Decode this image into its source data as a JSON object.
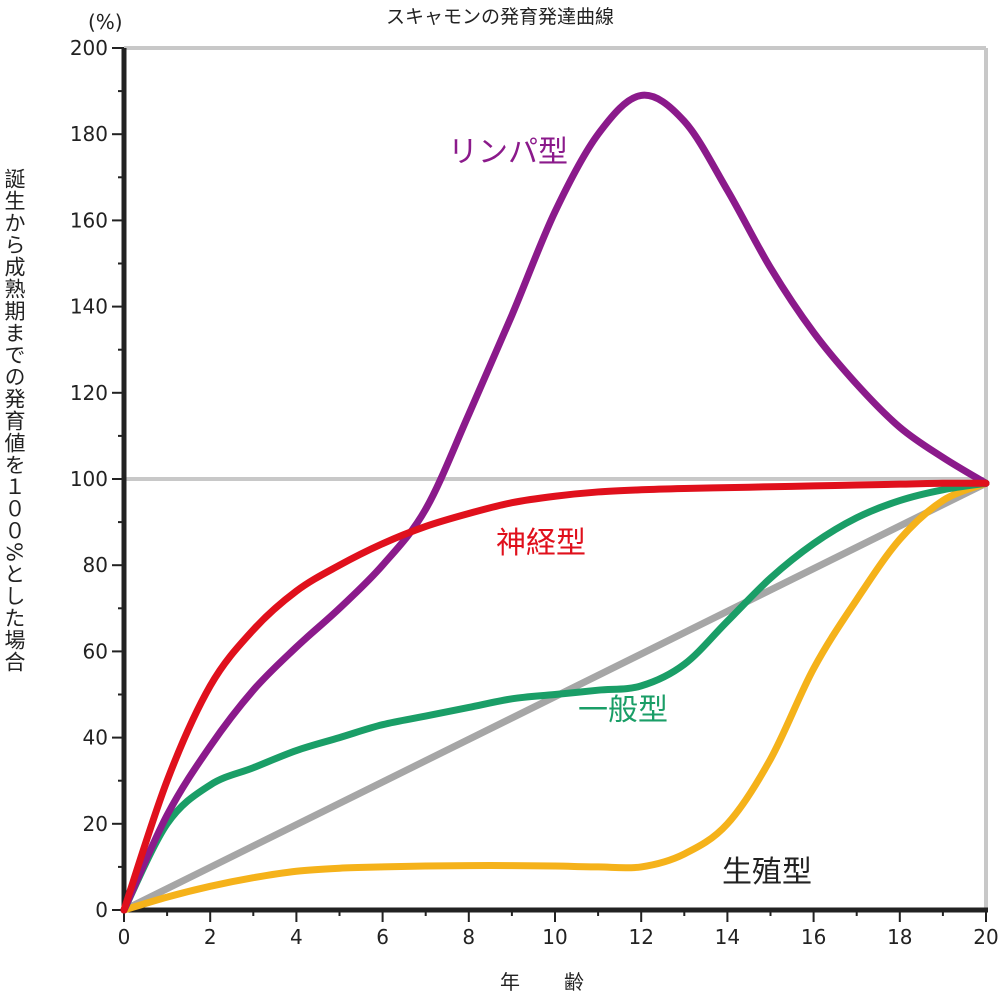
{
  "chart_data": {
    "type": "line",
    "title": "スキャモンの発育発達曲線",
    "y_unit": "(%)",
    "ylabel": "誕生から成熟期までの発育値を１００%とした場合",
    "xlabel": "年　齢",
    "xlim": [
      0,
      20
    ],
    "ylim": [
      0,
      200
    ],
    "x_ticks": [
      0,
      2,
      4,
      6,
      8,
      10,
      12,
      14,
      16,
      18,
      20
    ],
    "y_ticks": [
      0,
      20,
      40,
      60,
      80,
      100,
      120,
      140,
      160,
      180,
      200
    ],
    "grid": false,
    "reference_line": {
      "y": 100,
      "color": "#c8c8c8"
    },
    "series": [
      {
        "name": "リンパ型",
        "color": "#8b1a8b",
        "x": [
          0,
          1,
          2,
          3,
          4,
          5,
          6,
          7,
          8,
          9,
          10,
          11,
          12,
          13,
          14,
          15,
          16,
          17,
          18,
          19,
          20
        ],
        "y": [
          0,
          22,
          38,
          51,
          61,
          70,
          80,
          93,
          115,
          138,
          162,
          180,
          189,
          183,
          167,
          149,
          134,
          122,
          112,
          105,
          99
        ]
      },
      {
        "name": "神経型",
        "color": "#e0101c",
        "x": [
          0,
          1,
          2,
          3,
          4,
          5,
          6,
          7,
          8,
          9,
          10,
          11,
          12,
          13,
          14,
          15,
          16,
          17,
          18,
          19,
          20
        ],
        "y": [
          0,
          30,
          52,
          65,
          74,
          80,
          85,
          89,
          92,
          94.5,
          96,
          97,
          97.5,
          97.8,
          98,
          98.2,
          98.4,
          98.6,
          98.8,
          99,
          99
        ]
      },
      {
        "name": "一般型",
        "color": "#1a9e67",
        "x": [
          0,
          1,
          2,
          3,
          4,
          5,
          6,
          7,
          8,
          9,
          10,
          11,
          12,
          13,
          14,
          15,
          16,
          17,
          18,
          19,
          20
        ],
        "y": [
          0,
          20,
          29,
          33,
          37,
          40,
          43,
          45,
          47,
          49,
          50,
          51,
          52,
          57,
          67,
          77,
          85,
          91,
          95,
          97.5,
          99
        ]
      },
      {
        "name": "生殖型",
        "color": "#f5b21a",
        "x": [
          0,
          1,
          2,
          3,
          4,
          5,
          6,
          7,
          8,
          9,
          10,
          11,
          12,
          13,
          14,
          15,
          16,
          17,
          18,
          19,
          20
        ],
        "y": [
          0,
          3,
          5.5,
          7.5,
          9,
          9.7,
          10,
          10.2,
          10.3,
          10.3,
          10.2,
          10,
          10,
          13,
          20,
          35,
          56,
          72,
          86,
          95,
          99
        ]
      },
      {
        "name": "",
        "color": "#a6a6a6",
        "x": [
          0,
          20
        ],
        "y": [
          0,
          99
        ]
      }
    ]
  }
}
